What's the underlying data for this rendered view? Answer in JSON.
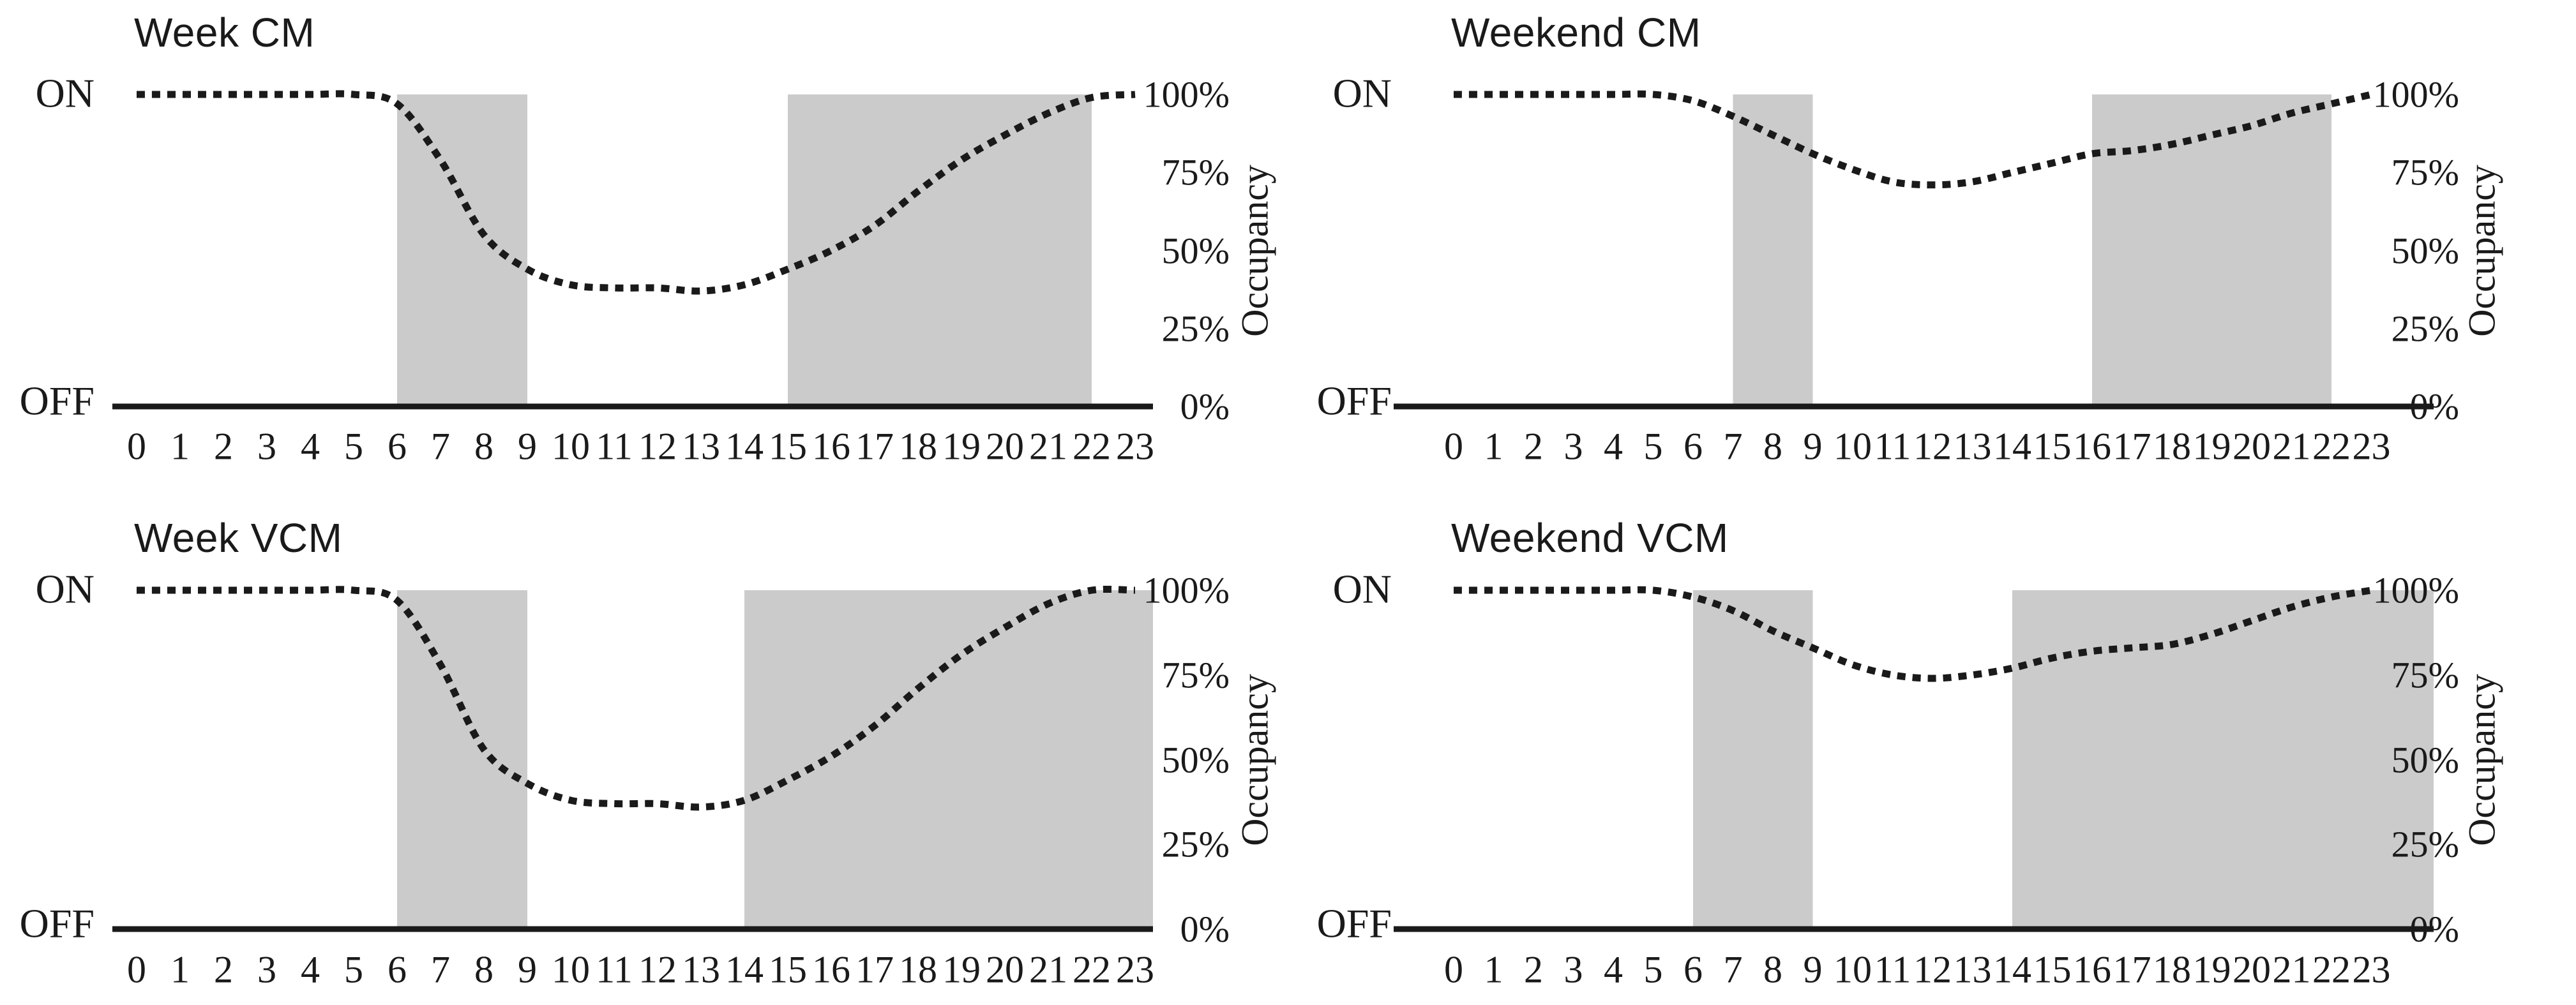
{
  "figure": {
    "background": "#ffffff",
    "text_color": "#1a1a1a",
    "band_color": "#cbcbcb",
    "line_color": "#1a1a1a"
  },
  "chart_data": [
    {
      "type": "line",
      "title": "Week CM",
      "left_axis": {
        "on": "ON",
        "off": "OFF"
      },
      "right_axis": {
        "label": "Occupancy",
        "ticks": [
          "100%",
          "75%",
          "50%",
          "25%",
          "0%"
        ],
        "range": [
          0,
          100
        ]
      },
      "x_ticks": [
        "0",
        "1",
        "2",
        "3",
        "4",
        "5",
        "6",
        "7",
        "8",
        "9",
        "10",
        "11",
        "12",
        "13",
        "14",
        "15",
        "16",
        "17",
        "18",
        "19",
        "20",
        "21",
        "22",
        "23"
      ],
      "series": [
        {
          "name": "Occupancy",
          "style": "dotted",
          "values": [
            100,
            100,
            100,
            100,
            100,
            100,
            97,
            79,
            55,
            44,
            39,
            38,
            38,
            37,
            39,
            44,
            50,
            58,
            69,
            79,
            87,
            94,
            99,
            100
          ]
        }
      ],
      "shaded_on_periods_hours": [
        [
          6,
          9
        ],
        [
          15,
          22
        ]
      ]
    },
    {
      "type": "line",
      "title": "Weekend CM",
      "left_axis": {
        "on": "ON",
        "off": "OFF"
      },
      "right_axis": {
        "label": "Occupancy",
        "ticks": [
          "100%",
          "75%",
          "50%",
          "25%",
          "0%"
        ],
        "range": [
          0,
          100
        ]
      },
      "x_ticks": [
        "0",
        "1",
        "2",
        "3",
        "4",
        "5",
        "6",
        "7",
        "8",
        "9",
        "10",
        "11",
        "12",
        "13",
        "14",
        "15",
        "16",
        "17",
        "18",
        "19",
        "20",
        "21",
        "22",
        "23"
      ],
      "series": [
        {
          "name": "Occupancy",
          "style": "dotted",
          "values": [
            100,
            100,
            100,
            100,
            100,
            100,
            98,
            93,
            87,
            81,
            76,
            72,
            71,
            72,
            75,
            78,
            81,
            82,
            84,
            87,
            90,
            94,
            97,
            100
          ]
        }
      ],
      "shaded_on_periods_hours": [
        [
          7,
          9
        ],
        [
          16,
          22
        ]
      ]
    },
    {
      "type": "line",
      "title": "Week VCM",
      "left_axis": {
        "on": "ON",
        "off": "OFF"
      },
      "right_axis": {
        "label": "Occupancy",
        "ticks": [
          "100%",
          "75%",
          "50%",
          "25%",
          "0%"
        ],
        "range": [
          0,
          100
        ]
      },
      "x_ticks": [
        "0",
        "1",
        "2",
        "3",
        "4",
        "5",
        "6",
        "7",
        "8",
        "9",
        "10",
        "11",
        "12",
        "13",
        "14",
        "15",
        "16",
        "17",
        "18",
        "19",
        "20",
        "21",
        "22",
        "23"
      ],
      "series": [
        {
          "name": "Occupancy",
          "style": "dotted",
          "values": [
            100,
            100,
            100,
            100,
            100,
            100,
            97,
            78,
            53,
            43,
            38,
            37,
            37,
            36,
            38,
            44,
            51,
            60,
            71,
            81,
            89,
            96,
            100,
            100
          ]
        }
      ],
      "shaded_on_periods_hours": [
        [
          6,
          9
        ],
        [
          14,
          24
        ]
      ]
    },
    {
      "type": "line",
      "title": "Weekend VCM",
      "left_axis": {
        "on": "ON",
        "off": "OFF"
      },
      "right_axis": {
        "label": "Occupancy",
        "ticks": [
          "100%",
          "75%",
          "50%",
          "25%",
          "0%"
        ],
        "range": [
          0,
          100
        ]
      },
      "x_ticks": [
        "0",
        "1",
        "2",
        "3",
        "4",
        "5",
        "6",
        "7",
        "8",
        "9",
        "10",
        "11",
        "12",
        "13",
        "14",
        "15",
        "16",
        "17",
        "18",
        "19",
        "20",
        "21",
        "22",
        "23"
      ],
      "series": [
        {
          "name": "Occupancy",
          "style": "dotted",
          "values": [
            100,
            100,
            100,
            100,
            100,
            100,
            98,
            94,
            88,
            83,
            78,
            75,
            74,
            75,
            77,
            80,
            82,
            83,
            84,
            87,
            91,
            95,
            98,
            100
          ]
        }
      ],
      "shaded_on_periods_hours": [
        [
          6,
          9
        ],
        [
          14,
          24
        ]
      ]
    }
  ]
}
